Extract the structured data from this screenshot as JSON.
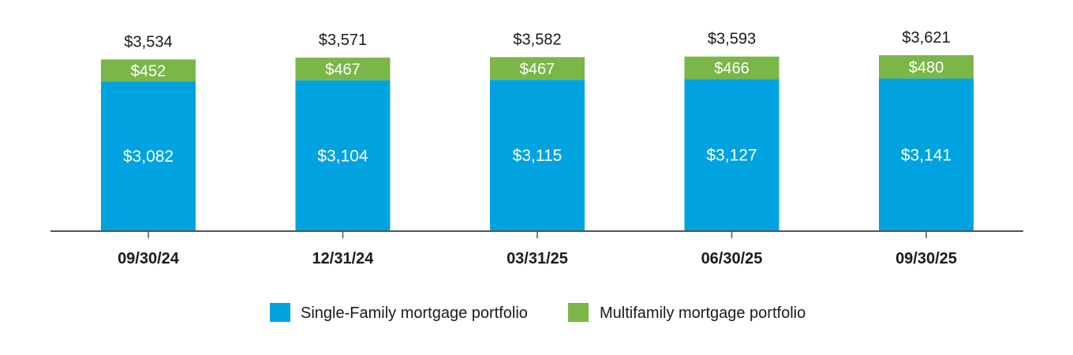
{
  "chart_data": {
    "type": "bar",
    "stacked": true,
    "title": "",
    "xlabel": "",
    "ylabel": "",
    "categories": [
      "09/30/24",
      "12/31/24",
      "03/31/25",
      "06/30/25",
      "09/30/25"
    ],
    "series": [
      {
        "name": "Single-Family mortgage portfolio",
        "color": "#00A3E0",
        "values": [
          3082,
          3104,
          3115,
          3127,
          3141
        ],
        "labels": [
          "$3,082",
          "$3,104",
          "$3,115",
          "$3,127",
          "$3,141"
        ]
      },
      {
        "name": "Multifamily mortgage portfolio",
        "color": "#7AB648",
        "values": [
          452,
          467,
          467,
          466,
          480
        ],
        "labels": [
          "$452",
          "$467",
          "$467",
          "$466",
          "$480"
        ]
      }
    ],
    "totals": [
      3534,
      3571,
      3582,
      3593,
      3621
    ],
    "total_labels": [
      "$3,534",
      "$3,571",
      "$3,582",
      "$3,593",
      "$3,621"
    ],
    "ylim": [
      0,
      3621
    ],
    "grid": false,
    "legend_position": "bottom-center",
    "axis_color": "#555555"
  }
}
